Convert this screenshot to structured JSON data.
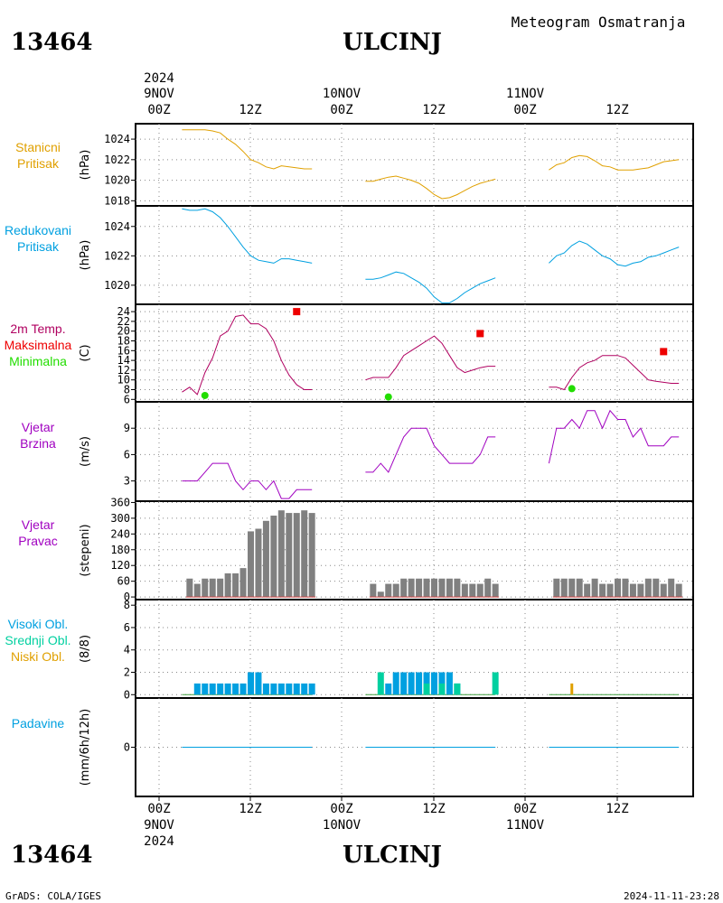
{
  "header": {
    "station_id": "13464",
    "station_name": "ULCINJ",
    "subtitle": "Meteogram Osmatranja"
  },
  "time_axis": {
    "year": "2024",
    "tick_labels": [
      "00Z",
      "12Z",
      "00Z",
      "12Z",
      "00Z",
      "12Z"
    ],
    "date_labels": [
      "9NOV",
      "10NOV",
      "11NOV"
    ]
  },
  "footer": {
    "left": "GrADS: COLA/IGES",
    "right": "2024-11-11-23:28"
  },
  "colors": {
    "pressure": "#e0a000",
    "reduced": "#00a0e0",
    "temp": "#b00060",
    "tmax": "#ee0000",
    "tmin": "#22dd00",
    "wind": "#a000c0",
    "winddir": "#808080",
    "high_cloud": "#00a0e0",
    "mid_cloud": "#00d0a0",
    "low_cloud": "#e0a000",
    "precip": "#00a0e0"
  },
  "chart_data": [
    {
      "id": "stanicni",
      "type": "line",
      "labels": [
        "Stanicni",
        "Pritisak"
      ],
      "unit": "(hPa)",
      "ylim": [
        1017.5,
        1025.5
      ],
      "yticks": [
        1018,
        1020,
        1022,
        1024
      ],
      "x_unit": "hours from 2024-11-09 00Z",
      "series": [
        {
          "segments": [
            {
              "x": [
                3,
                4,
                5,
                6,
                7,
                8,
                9,
                10,
                11,
                12,
                13,
                14,
                15,
                16,
                17,
                18,
                19,
                20
              ],
              "y": [
                1024.9,
                1024.9,
                1024.9,
                1024.9,
                1024.8,
                1024.6,
                1024.0,
                1023.5,
                1022.8,
                1022.0,
                1021.7,
                1021.3,
                1021.1,
                1021.4,
                1021.3,
                1021.2,
                1021.1,
                1021.1
              ]
            },
            {
              "x": [
                27,
                28,
                29,
                30,
                31,
                32,
                33,
                34,
                35,
                36,
                37,
                38,
                39,
                40,
                41,
                42,
                43,
                44
              ],
              "y": [
                1019.9,
                1019.9,
                1020.1,
                1020.3,
                1020.4,
                1020.2,
                1020.0,
                1019.7,
                1019.2,
                1018.6,
                1018.2,
                1018.3,
                1018.6,
                1019.0,
                1019.4,
                1019.7,
                1019.9,
                1020.1
              ]
            },
            {
              "x": [
                51,
                52,
                53,
                54,
                55,
                56,
                57,
                58,
                59,
                60,
                61,
                62,
                63,
                64,
                65,
                66,
                67,
                68
              ],
              "y": [
                1021.0,
                1021.5,
                1021.7,
                1022.2,
                1022.4,
                1022.3,
                1021.9,
                1021.4,
                1021.3,
                1021.0,
                1021.0,
                1021.0,
                1021.1,
                1021.2,
                1021.5,
                1021.8,
                1021.9,
                1022.0
              ]
            }
          ]
        }
      ]
    },
    {
      "id": "redukovani",
      "type": "line",
      "labels": [
        "Redukovani",
        "Pritisak"
      ],
      "unit": "(hPa)",
      "ylim": [
        1018.7,
        1025.4
      ],
      "yticks": [
        1020,
        1022,
        1024
      ],
      "series": [
        {
          "segments": [
            {
              "x": [
                3,
                4,
                5,
                6,
                7,
                8,
                9,
                10,
                11,
                12,
                13,
                14,
                15,
                16,
                17,
                18,
                19,
                20
              ],
              "y": [
                1025.2,
                1025.1,
                1025.1,
                1025.2,
                1025.0,
                1024.6,
                1024.0,
                1023.3,
                1022.6,
                1022.0,
                1021.7,
                1021.6,
                1021.5,
                1021.8,
                1021.8,
                1021.7,
                1021.6,
                1021.5
              ]
            },
            {
              "x": [
                27,
                28,
                29,
                30,
                31,
                32,
                33,
                34,
                35,
                36,
                37,
                38,
                39,
                40,
                41,
                42,
                43,
                44
              ],
              "y": [
                1020.4,
                1020.4,
                1020.5,
                1020.7,
                1020.9,
                1020.8,
                1020.5,
                1020.2,
                1019.8,
                1019.2,
                1018.8,
                1018.8,
                1019.1,
                1019.5,
                1019.8,
                1020.1,
                1020.3,
                1020.5
              ]
            },
            {
              "x": [
                51,
                52,
                53,
                54,
                55,
                56,
                57,
                58,
                59,
                60,
                61,
                62,
                63,
                64,
                65,
                66,
                67,
                68
              ],
              "y": [
                1021.5,
                1022.0,
                1022.2,
                1022.7,
                1023.0,
                1022.8,
                1022.4,
                1022.0,
                1021.8,
                1021.4,
                1021.3,
                1021.5,
                1021.6,
                1021.9,
                1022.0,
                1022.2,
                1022.4,
                1022.6
              ]
            }
          ]
        }
      ]
    },
    {
      "id": "temp",
      "type": "line",
      "labels": [
        "2m Temp.",
        "Maksimalna",
        "Minimalna"
      ],
      "unit": "(C)",
      "ylim": [
        5.5,
        25.5
      ],
      "yticks": [
        6,
        8,
        10,
        12,
        14,
        16,
        18,
        20,
        22,
        24
      ],
      "series": [
        {
          "segments": [
            {
              "x": [
                3,
                4,
                5,
                6,
                7,
                8,
                9,
                10,
                11,
                12,
                13,
                14,
                15,
                16,
                17,
                18,
                19,
                20
              ],
              "y": [
                7.5,
                8.5,
                7.0,
                11.5,
                14.5,
                19.0,
                20.0,
                23.0,
                23.3,
                21.5,
                21.5,
                20.5,
                18.0,
                14.0,
                11.0,
                9.0,
                8.0,
                8.0
              ]
            },
            {
              "x": [
                27,
                28,
                29,
                30,
                31,
                32,
                33,
                34,
                35,
                36,
                37,
                38,
                39,
                40,
                41,
                42,
                43,
                44
              ],
              "y": [
                10.0,
                10.5,
                10.5,
                10.5,
                12.5,
                15.0,
                16.0,
                17.0,
                18.0,
                19.0,
                17.5,
                15.0,
                12.5,
                11.5,
                12.0,
                12.5,
                12.8,
                12.8
              ]
            },
            {
              "x": [
                51,
                52,
                53,
                54,
                55,
                56,
                57,
                58,
                59,
                60,
                61,
                62,
                63,
                64,
                65,
                66,
                67,
                68
              ],
              "y": [
                8.5,
                8.5,
                8.0,
                10.5,
                12.5,
                13.5,
                14.0,
                15.0,
                15.0,
                15.0,
                14.5,
                13.0,
                11.5,
                10.0,
                9.7,
                9.5,
                9.3,
                9.3
              ]
            }
          ]
        },
        {
          "name": "Maksimalna",
          "marker": "square",
          "x": [
            18,
            42,
            66
          ],
          "y": [
            24.0,
            19.5,
            15.8
          ]
        },
        {
          "name": "Minimalna",
          "marker": "circle",
          "x": [
            6,
            30,
            54
          ],
          "y": [
            6.8,
            6.5,
            8.2
          ]
        }
      ]
    },
    {
      "id": "vjetar",
      "type": "line",
      "labels": [
        "Vjetar",
        "Brzina"
      ],
      "unit": "(m/s)",
      "ylim": [
        0.7,
        12.0
      ],
      "yticks": [
        3,
        6,
        9
      ],
      "series": [
        {
          "segments": [
            {
              "x": [
                3,
                4,
                5,
                6,
                7,
                8,
                9,
                10,
                11,
                12,
                13,
                14,
                15,
                16,
                17,
                18,
                19,
                20
              ],
              "y": [
                3,
                3,
                3,
                4,
                5,
                5,
                5,
                3,
                2,
                3,
                3,
                2,
                3,
                1,
                1,
                2,
                2,
                2
              ]
            },
            {
              "x": [
                27,
                28,
                29,
                30,
                31,
                32,
                33,
                34,
                35,
                36,
                37,
                38,
                39,
                40,
                41,
                42,
                43,
                44
              ],
              "y": [
                4,
                4,
                5,
                4,
                6,
                8,
                9,
                9,
                9,
                7,
                6,
                5,
                5,
                5,
                5,
                6,
                8,
                8
              ]
            },
            {
              "x": [
                51,
                52,
                53,
                54,
                55,
                56,
                57,
                58,
                59,
                60,
                61,
                62,
                63,
                64,
                65,
                66,
                67,
                68
              ],
              "y": [
                5,
                9,
                9,
                10,
                9,
                11,
                11,
                9,
                11,
                10,
                10,
                8,
                9,
                7,
                7,
                7,
                8,
                8
              ]
            }
          ]
        }
      ]
    },
    {
      "id": "pravac",
      "type": "bar",
      "labels": [
        "Vjetar",
        "Pravac"
      ],
      "unit": "(stepeni)",
      "ylim": [
        -10,
        365
      ],
      "yticks": [
        0,
        60,
        120,
        180,
        240,
        300,
        360
      ],
      "segments": [
        {
          "x": [
            4,
            5,
            6,
            7,
            8,
            9,
            10,
            11,
            12,
            13,
            14,
            15,
            16,
            17,
            18,
            19,
            20
          ],
          "values": [
            70,
            50,
            70,
            70,
            70,
            90,
            90,
            110,
            250,
            260,
            290,
            310,
            330,
            320,
            320,
            330,
            320
          ]
        },
        {
          "x": [
            28,
            29,
            30,
            31,
            32,
            33,
            34,
            35,
            36,
            37,
            38,
            39,
            40,
            41,
            42,
            43,
            44
          ],
          "values": [
            50,
            20,
            50,
            50,
            70,
            70,
            70,
            70,
            70,
            70,
            70,
            70,
            50,
            50,
            50,
            70,
            50
          ]
        },
        {
          "x": [
            52,
            53,
            54,
            55,
            56,
            57,
            58,
            59,
            60,
            61,
            62,
            63,
            64,
            65,
            66,
            67,
            68
          ],
          "values": [
            70,
            70,
            70,
            70,
            50,
            70,
            50,
            50,
            70,
            70,
            50,
            50,
            70,
            70,
            50,
            70,
            50
          ]
        }
      ]
    },
    {
      "id": "oblaci",
      "type": "bar",
      "labels": [
        "Visoki Obl.",
        "Srednji Obl.",
        "Niski Obl."
      ],
      "unit": "(8/8)",
      "ylim": [
        -0.3,
        8.5
      ],
      "yticks": [
        0,
        2,
        4,
        6,
        8
      ],
      "series": [
        {
          "name": "Visoki Obl.",
          "x": [
            5,
            6,
            7,
            8,
            9,
            10,
            11,
            12,
            13,
            14,
            15,
            16,
            17,
            18,
            19,
            20
          ],
          "values": [
            1,
            1,
            1,
            1,
            1,
            1,
            1,
            2,
            2,
            1,
            1,
            1,
            1,
            1,
            1,
            1
          ]
        },
        {
          "name": "Visoki Obl.",
          "x": [
            30,
            31,
            32,
            33,
            34,
            35,
            36,
            37,
            38,
            39
          ],
          "values": [
            1,
            2,
            2,
            2,
            2,
            2,
            2,
            2,
            2,
            1
          ]
        },
        {
          "name": "Srednji Obl.",
          "x": [
            29,
            35,
            37,
            39,
            44
          ],
          "values": [
            2,
            1,
            1,
            1,
            2
          ]
        },
        {
          "name": "Niski Obl.",
          "x": [
            54
          ],
          "values": [
            1
          ]
        }
      ]
    },
    {
      "id": "padavine",
      "type": "line",
      "labels": [
        "Padavine"
      ],
      "unit": "(mm/6h/12h)",
      "ylim": [
        -2,
        2
      ],
      "yticks": [
        0
      ],
      "series": [
        {
          "segments": [
            {
              "x": [
                3,
                20
              ],
              "y": [
                0,
                0
              ]
            },
            {
              "x": [
                27,
                44
              ],
              "y": [
                0,
                0
              ]
            },
            {
              "x": [
                51,
                68
              ],
              "y": [
                0,
                0
              ]
            }
          ]
        }
      ]
    }
  ]
}
